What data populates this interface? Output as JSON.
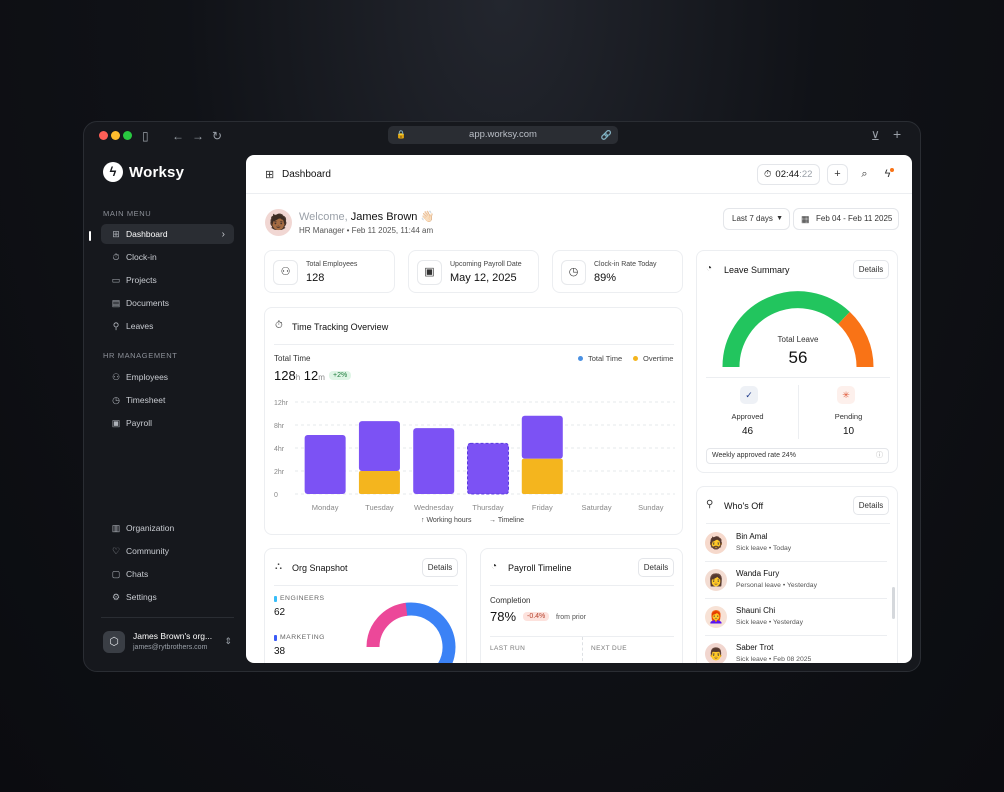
{
  "browser": {
    "url": "app.worksy.com",
    "colors": {
      "close": "#ff5f57",
      "minimize": "#febc2e",
      "zoom": "#28c840"
    }
  },
  "sidebar": {
    "brand": "Worksy",
    "main_menu_label": "MAIN MENU",
    "main_items": [
      {
        "label": "Dashboard",
        "icon": "grid-icon",
        "active": true
      },
      {
        "label": "Clock-in",
        "icon": "stopwatch-icon"
      },
      {
        "label": "Projects",
        "icon": "folder-icon"
      },
      {
        "label": "Documents",
        "icon": "document-icon"
      },
      {
        "label": "Leaves",
        "icon": "user-icon"
      }
    ],
    "hr_label": "HR MANAGEMENT",
    "hr_items": [
      {
        "label": "Employees",
        "icon": "users-icon"
      },
      {
        "label": "Timesheet",
        "icon": "clock-icon"
      },
      {
        "label": "Payroll",
        "icon": "wallet-icon"
      }
    ],
    "bottom_items": [
      {
        "label": "Organization",
        "icon": "building-icon"
      },
      {
        "label": "Community",
        "icon": "heart-icon"
      },
      {
        "label": "Chats",
        "icon": "chat-icon"
      },
      {
        "label": "Settings",
        "icon": "gear-icon"
      }
    ],
    "org": {
      "name": "James Brown's org...",
      "email": "james@rytbrothers.com"
    }
  },
  "header": {
    "title": "Dashboard",
    "timer_main": "02:44",
    "timer_secs": ":22"
  },
  "welcome": {
    "greeting": "Welcome,",
    "name": "James Brown 👋🏻",
    "subtitle": "HR Manager • Feb 11 2025, 11:44 am"
  },
  "filters": {
    "range": "Last 7 days",
    "dates": "Feb 04 - Feb 11 2025"
  },
  "stats": [
    {
      "label": "Total Employees",
      "value": "128",
      "icon": "users-icon"
    },
    {
      "label": "Upcoming Payroll Date",
      "value": "May 12, 2025",
      "icon": "wallet-icon"
    },
    {
      "label": "Clock-in Rate Today",
      "value": "89%",
      "icon": "clock-icon"
    }
  ],
  "time_tracking": {
    "title": "Time Tracking Overview",
    "total_label": "Total Time",
    "hours": "128",
    "h_unit": "h",
    "minutes": "12",
    "m_unit": "m",
    "change": "+2%",
    "legend_total": "Total Time",
    "legend_overtime": "Overtime",
    "footer_working": "Working hours",
    "footer_timeline": "Timeline",
    "colors": {
      "total": "#7c52f4",
      "overtime": "#f4b51e",
      "legend_total": "#4a90e2"
    }
  },
  "chart_data": {
    "type": "bar",
    "categories": [
      "Monday",
      "Tuesday",
      "Wednesday",
      "Thursday",
      "Friday",
      "Saturday",
      "Sunday"
    ],
    "series": [
      {
        "name": "Total Time",
        "values": [
          7.7,
          6.5,
          8.6,
          6.6,
          5.6,
          0,
          0
        ]
      },
      {
        "name": "Overtime",
        "values": [
          0,
          3.0,
          0,
          0,
          4.6,
          0,
          0
        ]
      }
    ],
    "yticks": [
      "12hr",
      "8hr",
      "4hr",
      "2hr",
      "0"
    ],
    "ylim": [
      0,
      12
    ],
    "stacked": true,
    "grid": true
  },
  "leave_summary": {
    "title": "Leave Summary",
    "details": "Details",
    "total_label": "Total Leave",
    "total_value": "56",
    "approved_label": "Approved",
    "approved_value": "46",
    "pending_label": "Pending",
    "pending_value": "10",
    "rate_text": "Weekly approved rate 24%",
    "colors": {
      "approved": "#22c55e",
      "pending": "#f97316"
    }
  },
  "whos_off": {
    "title": "Who's Off",
    "details": "Details",
    "people": [
      {
        "name": "Bin Amal",
        "sub": "Sick leave • Today",
        "avatar": "🧔",
        "bg": "#f6d9cc"
      },
      {
        "name": "Wanda Fury",
        "sub": "Personal leave • Yesterday",
        "avatar": "👩",
        "bg": "#f3dcd2"
      },
      {
        "name": "Shauni Chi",
        "sub": "Sick leave • Yesterday",
        "avatar": "👩‍🦰",
        "bg": "#f7e2d6"
      },
      {
        "name": "Saber Trot",
        "sub": "Sick leave • Feb 08 2025",
        "avatar": "👨",
        "bg": "#f1d6cf"
      }
    ]
  },
  "org_snapshot": {
    "title": "Org Snapshot",
    "details": "Details",
    "groups": [
      {
        "label": "ENGINEERS",
        "value": "62",
        "color": "#38bdf8"
      },
      {
        "label": "MARKETING",
        "value": "38",
        "color": "#3b5bf6"
      }
    ],
    "donut_colors": [
      "#3b82f6",
      "#38bdf8",
      "#ec4899"
    ]
  },
  "payroll": {
    "title": "Payroll Timeline",
    "details": "Details",
    "completion_label": "Completion",
    "completion_value": "78%",
    "change": "-0.4%",
    "from_prior": "from prior",
    "last_run": "LAST RUN",
    "next_due": "NEXT DUE"
  }
}
